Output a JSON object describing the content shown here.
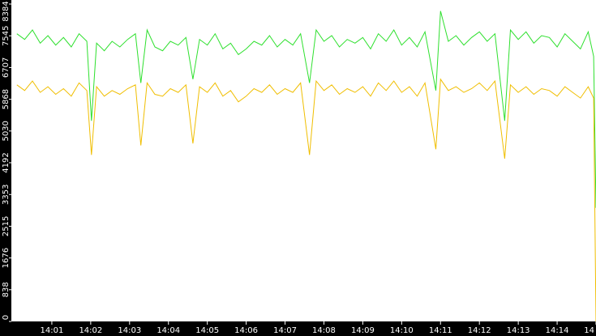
{
  "chart_data": {
    "type": "line",
    "x": [
      0.1,
      0.3,
      0.5,
      0.7,
      0.9,
      1.1,
      1.3,
      1.5,
      1.7,
      1.9,
      2.02,
      2.15,
      2.35,
      2.55,
      2.75,
      2.95,
      3.15,
      3.29,
      3.45,
      3.65,
      3.85,
      4.05,
      4.25,
      4.45,
      4.63,
      4.8,
      5.0,
      5.2,
      5.4,
      5.6,
      5.8,
      6.0,
      6.2,
      6.4,
      6.6,
      6.8,
      7.0,
      7.2,
      7.4,
      7.63,
      7.8,
      8.0,
      8.2,
      8.4,
      8.6,
      8.8,
      9.0,
      9.2,
      9.4,
      9.6,
      9.8,
      10.0,
      10.2,
      10.4,
      10.6,
      10.88,
      11.0,
      11.2,
      11.4,
      11.6,
      11.8,
      12.0,
      12.2,
      12.4,
      12.65,
      12.8,
      13.0,
      13.2,
      13.4,
      13.6,
      13.8,
      14.0,
      14.2,
      14.4,
      14.6,
      14.8,
      14.94,
      15.0
    ],
    "series": [
      {
        "color": "#2ee02e",
        "values": [
          7600,
          7450,
          7700,
          7350,
          7550,
          7300,
          7500,
          7250,
          7600,
          7400,
          5300,
          7350,
          7150,
          7400,
          7250,
          7450,
          7600,
          6300,
          7700,
          7250,
          7150,
          7400,
          7300,
          7500,
          6400,
          7450,
          7300,
          7600,
          7200,
          7350,
          7050,
          7200,
          7400,
          7300,
          7550,
          7250,
          7450,
          7300,
          7600,
          6300,
          7700,
          7400,
          7550,
          7250,
          7450,
          7350,
          7500,
          7200,
          7600,
          7400,
          7700,
          7300,
          7500,
          7250,
          7650,
          6100,
          8200,
          7400,
          7550,
          7300,
          7500,
          7650,
          7400,
          7600,
          5300,
          7700,
          7450,
          7650,
          7350,
          7550,
          7500,
          7250,
          7600,
          7400,
          7200,
          7650,
          7000,
          3000
        ]
      },
      {
        "color": "#f0be00",
        "values": [
          6250,
          6100,
          6350,
          6050,
          6200,
          6000,
          6150,
          5950,
          6300,
          6100,
          4400,
          6200,
          5950,
          6100,
          6000,
          6150,
          6250,
          4650,
          6300,
          6000,
          5950,
          6150,
          6050,
          6250,
          4700,
          6200,
          6050,
          6300,
          5950,
          6100,
          5800,
          5950,
          6150,
          6050,
          6250,
          6000,
          6150,
          6050,
          6300,
          4400,
          6350,
          6100,
          6250,
          6000,
          6150,
          6050,
          6200,
          5950,
          6300,
          6100,
          6350,
          6050,
          6200,
          5950,
          6300,
          4550,
          6400,
          6100,
          6200,
          6050,
          6150,
          6300,
          6100,
          6350,
          4300,
          6250,
          6050,
          6200,
          6000,
          6150,
          6100,
          5950,
          6200,
          6050,
          5900,
          6200,
          5900,
          0
        ]
      }
    ],
    "xlim": [
      0,
      15
    ],
    "xticks": [
      {
        "value": 1,
        "label": "14:01"
      },
      {
        "value": 2,
        "label": "14:02"
      },
      {
        "value": 3,
        "label": "14:03"
      },
      {
        "value": 4,
        "label": "14:04"
      },
      {
        "value": 5,
        "label": "14:05"
      },
      {
        "value": 6,
        "label": "14:06"
      },
      {
        "value": 7,
        "label": "14:07"
      },
      {
        "value": 8,
        "label": "14:08"
      },
      {
        "value": 9,
        "label": "14:09"
      },
      {
        "value": 10,
        "label": "14:10"
      },
      {
        "value": 11,
        "label": "14:11"
      },
      {
        "value": 12,
        "label": "14:12"
      },
      {
        "value": 13,
        "label": "14:13"
      },
      {
        "value": 14,
        "label": "14:14"
      },
      {
        "value": 15,
        "label": "14"
      }
    ],
    "ylim": [
      0,
      8384
    ],
    "yticks": [
      0,
      838,
      1676,
      2515,
      3353,
      4192,
      5030,
      5868,
      6707,
      7545,
      8384
    ]
  }
}
